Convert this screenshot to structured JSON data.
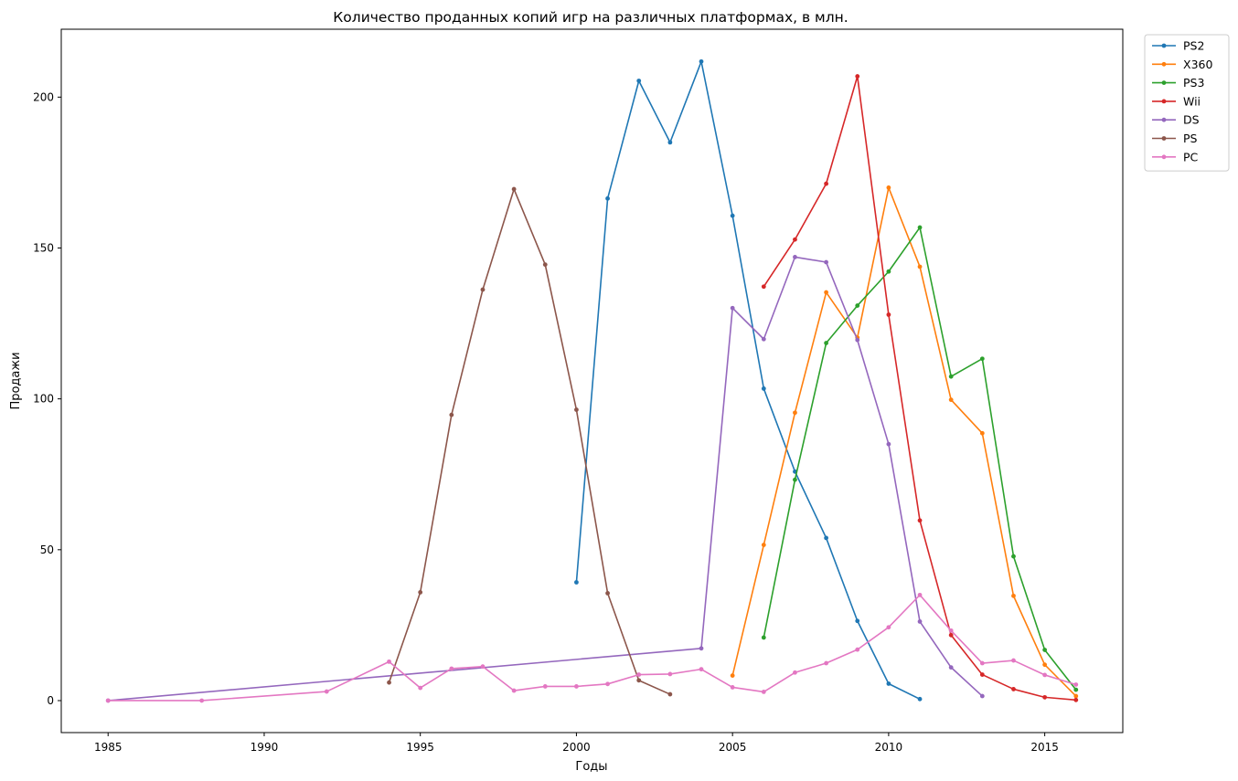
{
  "chart_data": {
    "type": "line",
    "title": "Количество проданных копий игр на различных платформах, в млн.",
    "xlabel": "Годы",
    "ylabel": "Продажи",
    "xlim": [
      1983.5,
      2017.5
    ],
    "ylim": [
      -10.6,
      222.5
    ],
    "xticks": [
      1985,
      1990,
      1995,
      2000,
      2005,
      2010,
      2015
    ],
    "yticks": [
      0,
      50,
      100,
      150,
      200
    ],
    "grid": false,
    "legend": "top-right, outside plot",
    "series": [
      {
        "name": "PS2",
        "color": "#1f77b4",
        "x": [
          2000,
          2001,
          2002,
          2003,
          2004,
          2005,
          2006,
          2007,
          2008,
          2009,
          2010,
          2011
        ],
        "y": [
          39.2,
          166.4,
          205.4,
          185.0,
          211.8,
          160.7,
          103.4,
          75.9,
          53.9,
          26.4,
          5.6,
          0.5
        ]
      },
      {
        "name": "X360",
        "color": "#ff7f0e",
        "x": [
          2005,
          2006,
          2007,
          2008,
          2009,
          2010,
          2011,
          2012,
          2013,
          2014,
          2015,
          2016
        ],
        "y": [
          8.3,
          51.6,
          95.4,
          135.3,
          120.3,
          170.0,
          143.8,
          99.7,
          88.6,
          34.7,
          11.9,
          1.5
        ]
      },
      {
        "name": "PS3",
        "color": "#2ca02c",
        "x": [
          2006,
          2007,
          2008,
          2009,
          2010,
          2011,
          2012,
          2013,
          2014,
          2015,
          2016
        ],
        "y": [
          20.9,
          73.2,
          118.5,
          130.9,
          142.2,
          156.8,
          107.4,
          113.3,
          47.8,
          16.8,
          3.6
        ]
      },
      {
        "name": "Wii",
        "color": "#d62728",
        "x": [
          2006,
          2007,
          2008,
          2009,
          2010,
          2011,
          2012,
          2013,
          2014,
          2015,
          2016
        ],
        "y": [
          137.2,
          152.8,
          171.3,
          206.9,
          127.9,
          59.7,
          21.7,
          8.6,
          3.8,
          1.1,
          0.2
        ]
      },
      {
        "name": "DS",
        "color": "#9467bd",
        "x": [
          1985,
          2004,
          2005,
          2006,
          2007,
          2008,
          2009,
          2010,
          2011,
          2012,
          2013
        ],
        "y": [
          0.0,
          17.3,
          130.1,
          119.8,
          147.0,
          145.3,
          119.5,
          85.0,
          26.2,
          11.0,
          1.5
        ]
      },
      {
        "name": "PS",
        "color": "#8c564b",
        "x": [
          1994,
          1995,
          1996,
          1997,
          1998,
          1999,
          2000,
          2001,
          2002,
          2003
        ],
        "y": [
          6.0,
          35.9,
          94.7,
          136.2,
          169.5,
          144.5,
          96.4,
          35.6,
          6.7,
          2.1
        ]
      },
      {
        "name": "PC",
        "color": "#e377c2",
        "x": [
          1985,
          1988,
          1992,
          1994,
          1995,
          1996,
          1997,
          1998,
          1999,
          2000,
          2001,
          2002,
          2003,
          2004,
          2005,
          2006,
          2007,
          2008,
          2009,
          2010,
          2011,
          2012,
          2013,
          2014,
          2015,
          2016
        ],
        "y": [
          0.0,
          0.0,
          3.0,
          12.9,
          4.2,
          10.6,
          11.3,
          3.3,
          4.7,
          4.7,
          5.5,
          8.6,
          8.8,
          10.4,
          4.4,
          2.9,
          9.3,
          12.4,
          16.9,
          24.3,
          35.0,
          23.2,
          12.4,
          13.3,
          8.5,
          5.3
        ]
      }
    ]
  }
}
